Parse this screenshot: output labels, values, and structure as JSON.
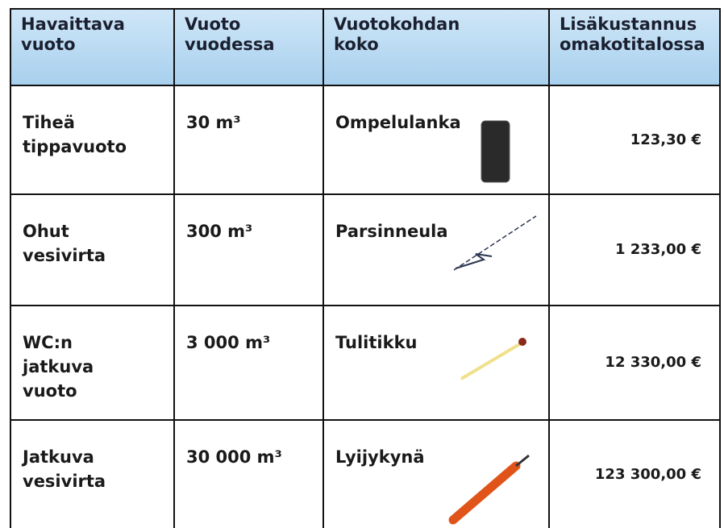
{
  "table": {
    "header": [
      "Havaittava\nvuoto",
      "Vuoto\nvuodessa",
      "Vuotokohdan\nkoko",
      "Lisäkustannus\nomakotitalossa"
    ],
    "rows": [
      [
        "Tiheä\ntippavuoto",
        "30 m³",
        "Ompelulanka",
        "123,30 €"
      ],
      [
        "Ohut\nvesivirta",
        "300 m³",
        "Parsinneula",
        "1 233,00 €"
      ],
      [
        "WC:n\njatkuva\nvuoto",
        "3 000 m³",
        "Tulitikku",
        "12 330,00 €"
      ],
      [
        "Jatkuva\nvesivirta",
        "30 000 m³",
        "Lyijykynä",
        "123 300,00 €"
      ]
    ]
  }
}
